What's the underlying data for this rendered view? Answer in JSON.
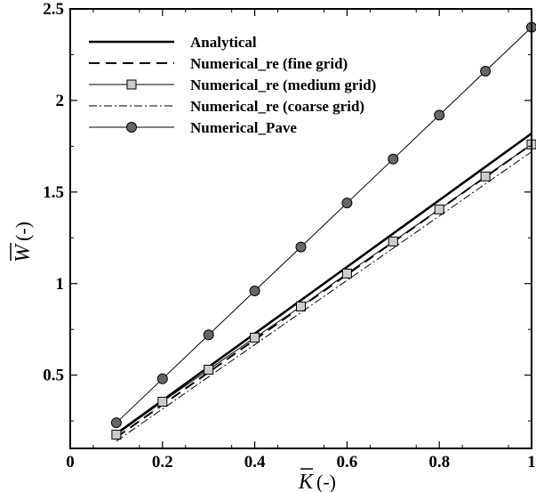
{
  "chart_data": {
    "type": "line",
    "xlabel": {
      "symbol": "K",
      "unit": "(-)"
    },
    "ylabel": {
      "symbol": "W",
      "unit": "(-)"
    },
    "xlim": [
      0,
      1
    ],
    "ylim": [
      0.1,
      2.5
    ],
    "xticks": [
      {
        "value": 0,
        "label": "0"
      },
      {
        "value": 0.2,
        "label": "0.2"
      },
      {
        "value": 0.4,
        "label": "0.4"
      },
      {
        "value": 0.6,
        "label": "0.6"
      },
      {
        "value": 0.8,
        "label": "0.8"
      },
      {
        "value": 1,
        "label": "1"
      }
    ],
    "yticks": [
      {
        "value": 0.5,
        "label": "0.5"
      },
      {
        "value": 1,
        "label": "1"
      },
      {
        "value": 1.5,
        "label": "1.5"
      },
      {
        "value": 2,
        "label": "2"
      },
      {
        "value": 2.5,
        "label": "2.5"
      }
    ],
    "grid": false,
    "legend_position": "top-left",
    "series": [
      {
        "name": "Analytical",
        "style": "solid-thick",
        "marker": "none",
        "color": "#000000",
        "x": [
          0.1,
          1
        ],
        "y": [
          0.18,
          1.82
        ]
      },
      {
        "name": "Numerical_re (fine grid)",
        "style": "dashed",
        "marker": "none",
        "color": "#000000",
        "x": [
          0.1,
          1
        ],
        "y": [
          0.16,
          1.76
        ]
      },
      {
        "name": "Numerical_re (medium grid)",
        "style": "solid-thin",
        "marker": "square",
        "color": "#000000",
        "marker_fill": "#cccccc",
        "x": [
          0.1,
          0.2,
          0.3,
          0.4,
          0.5,
          0.6,
          0.7,
          0.8,
          0.9,
          1
        ],
        "y": [
          0.175,
          0.355,
          0.53,
          0.705,
          0.875,
          1.055,
          1.23,
          1.405,
          1.585,
          1.76
        ]
      },
      {
        "name": "Numerical_re (coarse grid)",
        "style": "dashdot",
        "marker": "none",
        "color": "#000000",
        "x": [
          0.1,
          1
        ],
        "y": [
          0.14,
          1.72
        ]
      },
      {
        "name": "Numerical_Pave",
        "style": "solid-thin",
        "marker": "circle",
        "color": "#000000",
        "marker_fill": "#666666",
        "x": [
          0.1,
          0.2,
          0.3,
          0.4,
          0.5,
          0.6,
          0.7,
          0.8,
          0.9,
          1
        ],
        "y": [
          0.24,
          0.48,
          0.72,
          0.96,
          1.2,
          1.44,
          1.68,
          1.92,
          2.16,
          2.4
        ]
      }
    ]
  }
}
